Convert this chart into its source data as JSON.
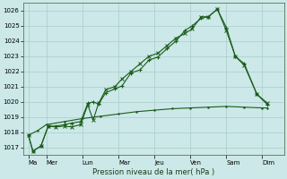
{
  "title": "",
  "xlabel": "Pression niveau de la mer( hPa )",
  "ylim": [
    1016.5,
    1026.5
  ],
  "yticks": [
    1017,
    1018,
    1019,
    1020,
    1021,
    1022,
    1023,
    1024,
    1025,
    1026
  ],
  "day_labels": [
    "Ma",
    "Mer",
    "Lun",
    "Mar",
    "Jeu",
    "Ven",
    "Sam",
    "Dim"
  ],
  "day_positions": [
    0,
    1,
    3,
    5,
    7,
    9,
    11,
    13
  ],
  "xlim": [
    -0.3,
    14.2
  ],
  "background_color": "#cce8e8",
  "grid_color": "#aacccc",
  "line_color": "#1a5c1a",
  "series1": [
    [
      0.0,
      1017.8
    ],
    [
      0.25,
      1016.75
    ],
    [
      0.7,
      1017.1
    ],
    [
      1.1,
      1018.4
    ],
    [
      1.5,
      1018.4
    ],
    [
      2.0,
      1018.5
    ],
    [
      2.4,
      1018.6
    ],
    [
      2.9,
      1018.7
    ],
    [
      3.3,
      1019.9
    ],
    [
      3.6,
      1020.0
    ],
    [
      3.9,
      1019.85
    ],
    [
      4.3,
      1020.6
    ],
    [
      4.8,
      1020.85
    ],
    [
      5.2,
      1021.05
    ],
    [
      5.7,
      1021.9
    ],
    [
      6.2,
      1022.1
    ],
    [
      6.7,
      1022.75
    ],
    [
      7.2,
      1022.95
    ],
    [
      7.7,
      1023.5
    ],
    [
      8.2,
      1024.0
    ],
    [
      8.7,
      1024.7
    ],
    [
      9.1,
      1025.0
    ],
    [
      9.6,
      1025.5
    ],
    [
      10.0,
      1025.6
    ],
    [
      10.5,
      1026.1
    ],
    [
      11.0,
      1024.9
    ],
    [
      11.5,
      1023.0
    ],
    [
      12.0,
      1022.5
    ],
    [
      12.7,
      1020.5
    ],
    [
      13.3,
      1019.8
    ]
  ],
  "series2": [
    [
      0.0,
      1017.8
    ],
    [
      0.25,
      1016.75
    ],
    [
      0.7,
      1017.1
    ],
    [
      1.1,
      1018.4
    ],
    [
      1.5,
      1018.35
    ],
    [
      2.0,
      1018.4
    ],
    [
      2.4,
      1018.35
    ],
    [
      2.9,
      1018.5
    ],
    [
      3.3,
      1019.8
    ],
    [
      3.6,
      1018.8
    ],
    [
      3.9,
      1019.9
    ],
    [
      4.3,
      1020.8
    ],
    [
      4.8,
      1021.0
    ],
    [
      5.2,
      1021.5
    ],
    [
      5.7,
      1022.0
    ],
    [
      6.2,
      1022.5
    ],
    [
      6.7,
      1023.0
    ],
    [
      7.2,
      1023.2
    ],
    [
      7.7,
      1023.7
    ],
    [
      8.2,
      1024.2
    ],
    [
      8.7,
      1024.5
    ],
    [
      9.1,
      1024.8
    ],
    [
      9.6,
      1025.6
    ],
    [
      10.0,
      1025.6
    ],
    [
      10.5,
      1026.1
    ],
    [
      11.0,
      1024.7
    ],
    [
      11.5,
      1023.0
    ],
    [
      12.0,
      1022.4
    ],
    [
      12.7,
      1020.5
    ],
    [
      13.3,
      1019.9
    ]
  ],
  "series3": [
    [
      0.0,
      1017.8
    ],
    [
      0.5,
      1018.1
    ],
    [
      1.0,
      1018.5
    ],
    [
      2.0,
      1018.7
    ],
    [
      3.0,
      1018.9
    ],
    [
      4.0,
      1019.05
    ],
    [
      5.0,
      1019.2
    ],
    [
      6.0,
      1019.35
    ],
    [
      7.0,
      1019.45
    ],
    [
      8.0,
      1019.55
    ],
    [
      9.0,
      1019.6
    ],
    [
      10.0,
      1019.65
    ],
    [
      11.0,
      1019.7
    ],
    [
      12.0,
      1019.65
    ],
    [
      13.0,
      1019.6
    ],
    [
      13.3,
      1019.6
    ]
  ]
}
